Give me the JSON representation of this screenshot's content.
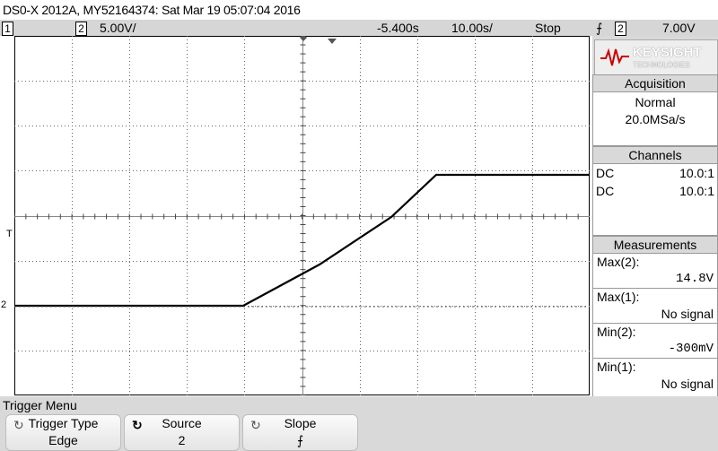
{
  "title": "DS0-X 2012A, MY52164374: Sat Mar 19 05:07:04 2016",
  "status": {
    "ch1_label": "1",
    "ch2_label": "2",
    "ch2_scale": "5.00V/",
    "time_offset": "-5.400s",
    "time_scale": "10.00s/",
    "run_state": "Stop",
    "trigger_slope_symbol": "⨍",
    "trigger_channel": "2",
    "trigger_level": "7.00V"
  },
  "logo": {
    "name": "KEYSIGHT",
    "sub": "TECHNOLOGIES",
    "icon": "keysight-wave-icon"
  },
  "acquisition": {
    "header": "Acquisition",
    "mode": "Normal",
    "rate": "20.0MSa/s"
  },
  "channels": {
    "header": "Channels",
    "rows": [
      {
        "coupling": "DC",
        "probe": "10.0:1"
      },
      {
        "coupling": "DC",
        "probe": "10.0:1"
      }
    ]
  },
  "measurements": {
    "header": "Measurements",
    "items": [
      {
        "label": "Max(2):",
        "value": "14.8V"
      },
      {
        "label": "Max(1):",
        "value": "No signal"
      },
      {
        "label": "Min(2):",
        "value": "-300mV"
      },
      {
        "label": "Min(1):",
        "value": "No signal"
      }
    ]
  },
  "grid_markers": {
    "trigger_marker": "T",
    "ground_marker": "2"
  },
  "menu": {
    "title": "Trigger Menu",
    "softkeys": [
      {
        "label": "Trigger Type",
        "value": "Edge",
        "icon": "rotate-knob-icon"
      },
      {
        "label": "Source",
        "value": "2",
        "icon": "rotate-knob-bold-icon"
      },
      {
        "label": "Slope",
        "value": "⨍",
        "icon": "rotate-knob-icon"
      }
    ]
  },
  "colors": {
    "background": "#ffffff",
    "panel": "#d9d9d9",
    "trace": "#000000"
  }
}
